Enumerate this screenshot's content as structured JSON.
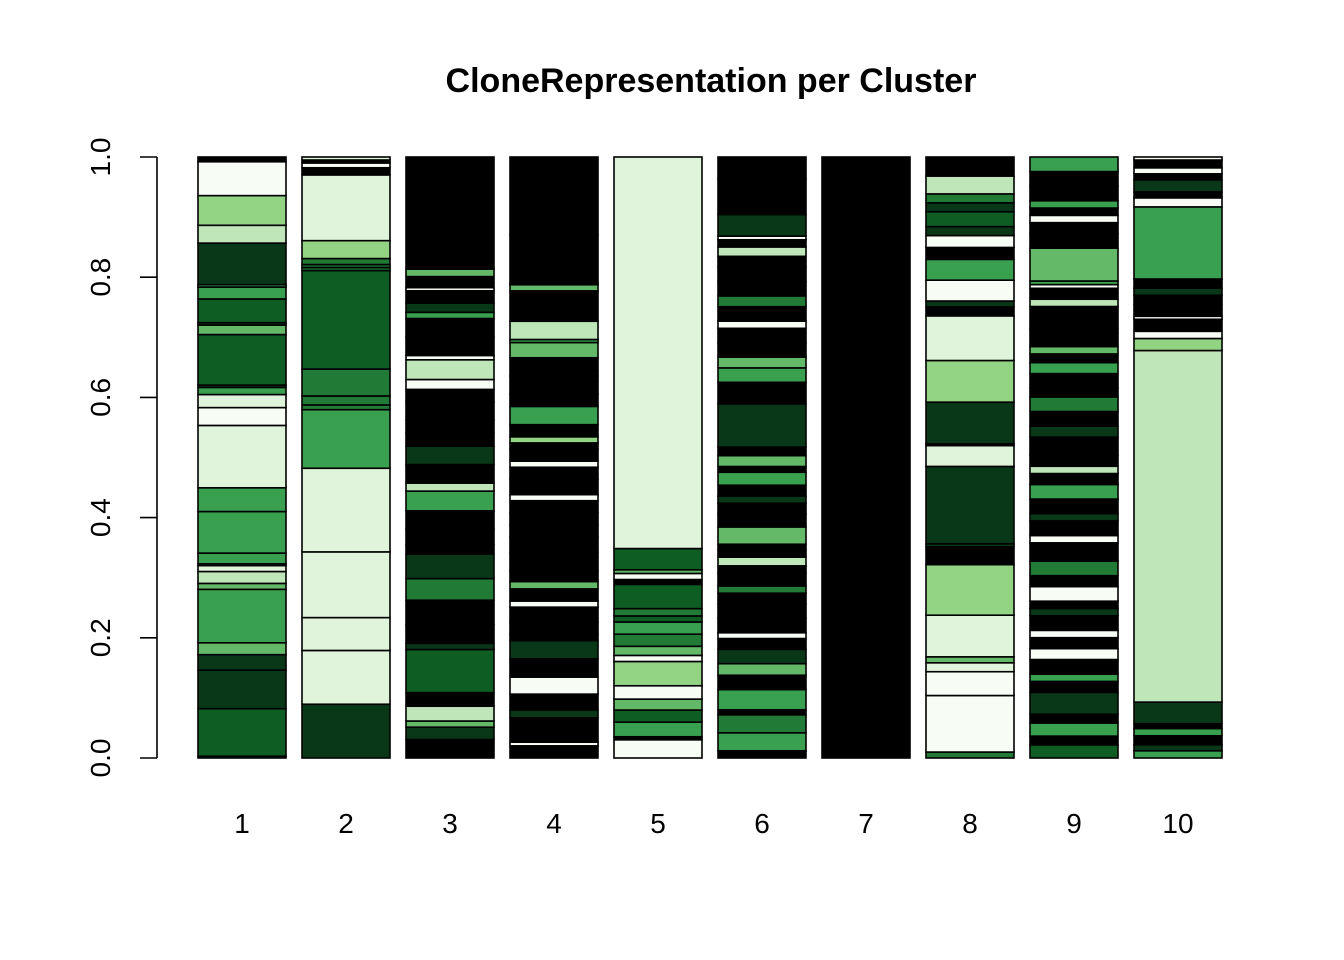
{
  "chart_data": {
    "type": "bar",
    "stacked": true,
    "title": "CloneRepresentation per Cluster",
    "xlabel": "",
    "ylabel": "",
    "ylim": [
      0,
      1
    ],
    "y_ticks": [
      "0.0",
      "0.2",
      "0.4",
      "0.6",
      "0.8",
      "1.0"
    ],
    "y_tick_values": [
      0,
      0.2,
      0.4,
      0.6,
      0.8,
      1.0
    ],
    "grid": false,
    "legend": "none",
    "categories": [
      "1",
      "2",
      "3",
      "4",
      "5",
      "6",
      "7",
      "8",
      "9",
      "10"
    ],
    "palette": [
      "#f7fcf5",
      "#e0f3db",
      "#bfe6b9",
      "#93d384",
      "#63b967",
      "#38a04f",
      "#217a36",
      "#0e5e24",
      "#083818",
      "#000000"
    ],
    "stacks": [
      [
        [
          0.003,
          8
        ],
        [
          0.08,
          7
        ],
        [
          0.065,
          8
        ],
        [
          0.026,
          8
        ],
        [
          0.02,
          4
        ],
        [
          0.09,
          5
        ],
        [
          0.01,
          4
        ],
        [
          0.02,
          2
        ],
        [
          0.01,
          1
        ],
        [
          0.003,
          7
        ],
        [
          0.018,
          5
        ],
        [
          0.07,
          5
        ],
        [
          0.04,
          5
        ],
        [
          0.105,
          1
        ],
        [
          0.03,
          0
        ],
        [
          0.022,
          1
        ],
        [
          0.012,
          5
        ],
        [
          0.004,
          8
        ],
        [
          0.085,
          7
        ],
        [
          0.016,
          4
        ],
        [
          0.004,
          8
        ],
        [
          0.04,
          7
        ],
        [
          0.02,
          5
        ],
        [
          0.004,
          5
        ],
        [
          0.07,
          8
        ],
        [
          0.03,
          2
        ],
        [
          0.05,
          3
        ],
        [
          0.057,
          0
        ],
        [
          0.008,
          9
        ]
      ],
      [
        [
          0.09,
          8
        ],
        [
          0.09,
          1
        ],
        [
          0.055,
          1
        ],
        [
          0.11,
          1
        ],
        [
          0.14,
          1
        ],
        [
          0.098,
          5
        ],
        [
          0.008,
          6
        ],
        [
          0.015,
          6
        ],
        [
          0.045,
          6
        ],
        [
          0.165,
          7
        ],
        [
          0.005,
          6
        ],
        [
          0.005,
          6
        ],
        [
          0.01,
          6
        ],
        [
          0.03,
          3
        ],
        [
          0.11,
          1
        ],
        [
          0.012,
          9
        ],
        [
          0.008,
          0
        ],
        [
          0.005,
          9
        ],
        [
          0.005,
          1
        ]
      ],
      [
        [
          0.03,
          9
        ],
        [
          0.02,
          8
        ],
        [
          0.01,
          4
        ],
        [
          0.024,
          2
        ],
        [
          0.022,
          9
        ],
        [
          0.07,
          7
        ],
        [
          0.01,
          8
        ],
        [
          0.03,
          9
        ],
        [
          0.04,
          9
        ],
        [
          0.035,
          6
        ],
        [
          0.04,
          8
        ],
        [
          0.015,
          9
        ],
        [
          0.025,
          9
        ],
        [
          0.03,
          9
        ],
        [
          0.032,
          5
        ],
        [
          0.013,
          2
        ],
        [
          0.03,
          9
        ],
        [
          0.03,
          8
        ],
        [
          0.022,
          9
        ],
        [
          0.02,
          9
        ],
        [
          0.03,
          9
        ],
        [
          0.02,
          9
        ],
        [
          0.016,
          0
        ],
        [
          0.032,
          2
        ],
        [
          0.007,
          0
        ],
        [
          0.03,
          9
        ],
        [
          0.03,
          9
        ],
        [
          0.01,
          5
        ],
        [
          0.015,
          8
        ],
        [
          0.02,
          9
        ],
        [
          0.005,
          0
        ],
        [
          0.018,
          9
        ],
        [
          0.012,
          4
        ],
        [
          0.182,
          9
        ]
      ],
      [
        [
          0.02,
          9
        ],
        [
          0.006,
          0
        ],
        [
          0.04,
          9
        ],
        [
          0.013,
          8
        ],
        [
          0.026,
          9
        ],
        [
          0.028,
          0
        ],
        [
          0.03,
          9
        ],
        [
          0.03,
          8
        ],
        [
          0.01,
          9
        ],
        [
          0.02,
          9
        ],
        [
          0.025,
          9
        ],
        [
          0.01,
          0
        ],
        [
          0.02,
          9
        ],
        [
          0.012,
          4
        ],
        [
          0.018,
          9
        ],
        [
          0.03,
          9
        ],
        [
          0.025,
          9
        ],
        [
          0.02,
          9
        ],
        [
          0.02,
          9
        ],
        [
          0.02,
          9
        ],
        [
          0.01,
          0
        ],
        [
          0.025,
          9
        ],
        [
          0.02,
          9
        ],
        [
          0.01,
          0
        ],
        [
          0.02,
          9
        ],
        [
          0.01,
          9
        ],
        [
          0.01,
          3
        ],
        [
          0.02,
          9
        ],
        [
          0.03,
          5
        ],
        [
          0.02,
          9
        ],
        [
          0.03,
          9
        ],
        [
          0.03,
          9
        ],
        [
          0.025,
          4
        ],
        [
          0.005,
          5
        ],
        [
          0.03,
          2
        ],
        [
          0.05,
          9
        ],
        [
          0.01,
          4
        ],
        [
          0.002,
          9
        ],
        [
          0.08,
          9
        ],
        [
          0.128,
          9
        ]
      ],
      [
        [
          0.03,
          0
        ],
        [
          0.005,
          9
        ],
        [
          0.024,
          5
        ],
        [
          0.02,
          7
        ],
        [
          0.018,
          4
        ],
        [
          0.022,
          0
        ],
        [
          0.04,
          3
        ],
        [
          0.01,
          0
        ],
        [
          0.015,
          4
        ],
        [
          0.02,
          6
        ],
        [
          0.02,
          5
        ],
        [
          0.01,
          7
        ],
        [
          0.012,
          6
        ],
        [
          0.04,
          7
        ],
        [
          0.008,
          9
        ],
        [
          0.01,
          0
        ],
        [
          0.006,
          4
        ],
        [
          0.035,
          7
        ],
        [
          0.645,
          1
        ]
      ],
      [
        [
          0.01,
          9
        ],
        [
          0.025,
          5
        ],
        [
          0.025,
          6
        ],
        [
          0.007,
          9
        ],
        [
          0.028,
          5
        ],
        [
          0.02,
          9
        ],
        [
          0.016,
          4
        ],
        [
          0.02,
          8
        ],
        [
          0.015,
          9
        ],
        [
          0.008,
          0
        ],
        [
          0.02,
          9
        ],
        [
          0.02,
          9
        ],
        [
          0.015,
          9
        ],
        [
          0.01,
          6
        ],
        [
          0.018,
          9
        ],
        [
          0.01,
          9
        ],
        [
          0.012,
          2
        ],
        [
          0.01,
          9
        ],
        [
          0.008,
          9
        ],
        [
          0.024,
          4
        ],
        [
          0.018,
          9
        ],
        [
          0.015,
          9
        ],
        [
          0.01,
          8
        ],
        [
          0.015,
          9
        ],
        [
          0.018,
          5
        ],
        [
          0.008,
          9
        ],
        [
          0.015,
          4
        ],
        [
          0.012,
          9
        ],
        [
          0.06,
          8
        ],
        [
          0.03,
          9
        ],
        [
          0.02,
          5
        ],
        [
          0.015,
          4
        ],
        [
          0.02,
          9
        ],
        [
          0.02,
          9
        ],
        [
          0.01,
          0
        ],
        [
          0.02,
          9
        ],
        [
          0.015,
          6
        ],
        [
          0.02,
          9
        ],
        [
          0.02,
          9
        ],
        [
          0.015,
          9
        ],
        [
          0.013,
          2
        ],
        [
          0.01,
          9
        ],
        [
          0.005,
          0
        ],
        [
          0.03,
          8
        ],
        [
          0.05,
          9
        ],
        [
          0.03,
          9
        ]
      ],
      [
        [
          1.0,
          9
        ]
      ],
      [
        [
          0.01,
          6
        ],
        [
          0.095,
          0
        ],
        [
          0.04,
          0
        ],
        [
          0.015,
          1
        ],
        [
          0.01,
          4
        ],
        [
          0.07,
          1
        ],
        [
          0.085,
          3
        ],
        [
          0.03,
          9
        ],
        [
          0.005,
          8
        ],
        [
          0.13,
          8
        ],
        [
          0.035,
          1
        ],
        [
          0.003,
          9
        ],
        [
          0.07,
          8
        ],
        [
          0.07,
          3
        ],
        [
          0.075,
          1
        ],
        [
          0.015,
          9
        ],
        [
          0.01,
          8
        ],
        [
          0.035,
          0
        ],
        [
          0.035,
          5
        ],
        [
          0.02,
          9
        ],
        [
          0.02,
          0
        ],
        [
          0.015,
          8
        ],
        [
          0.025,
          7
        ],
        [
          0.015,
          8
        ],
        [
          0.015,
          6
        ],
        [
          0.03,
          2
        ],
        [
          0.032,
          9
        ]
      ],
      [
        [
          0.018,
          7
        ],
        [
          0.012,
          9
        ],
        [
          0.018,
          5
        ],
        [
          0.012,
          9
        ],
        [
          0.03,
          8
        ],
        [
          0.015,
          9
        ],
        [
          0.01,
          5
        ],
        [
          0.02,
          9
        ],
        [
          0.015,
          0
        ],
        [
          0.015,
          9
        ],
        [
          0.01,
          0
        ],
        [
          0.02,
          9
        ],
        [
          0.01,
          8
        ],
        [
          0.01,
          9
        ],
        [
          0.02,
          0
        ],
        [
          0.015,
          9
        ],
        [
          0.02,
          6
        ],
        [
          0.025,
          9
        ],
        [
          0.01,
          0
        ],
        [
          0.02,
          9
        ],
        [
          0.01,
          8
        ],
        [
          0.02,
          9
        ],
        [
          0.02,
          5
        ],
        [
          0.015,
          9
        ],
        [
          0.01,
          2
        ],
        [
          0.015,
          9
        ],
        [
          0.025,
          9
        ],
        [
          0.015,
          8
        ],
        [
          0.02,
          9
        ],
        [
          0.02,
          6
        ],
        [
          0.012,
          9
        ],
        [
          0.02,
          9
        ],
        [
          0.015,
          5
        ],
        [
          0.012,
          9
        ],
        [
          0.01,
          4
        ],
        [
          0.025,
          9
        ],
        [
          0.03,
          9
        ],
        [
          0.01,
          2
        ],
        [
          0.015,
          9
        ],
        [
          0.005,
          0
        ],
        [
          0.005,
          5
        ],
        [
          0.045,
          4
        ],
        [
          0.02,
          9
        ],
        [
          0.015,
          9
        ],
        [
          0.01,
          0
        ],
        [
          0.01,
          9
        ],
        [
          0.01,
          5
        ],
        [
          0.02,
          9
        ],
        [
          0.02,
          9
        ],
        [
          0.02,
          5
        ]
      ],
      [
        [
          0.012,
          5
        ],
        [
          0.01,
          8
        ],
        [
          0.015,
          9
        ],
        [
          0.012,
          5
        ],
        [
          0.008,
          9
        ],
        [
          0.036,
          8
        ],
        [
          0.585,
          2
        ],
        [
          0.02,
          3
        ],
        [
          0.012,
          0
        ],
        [
          0.02,
          9
        ],
        [
          0.005,
          0
        ],
        [
          0.02,
          9
        ],
        [
          0.015,
          9
        ],
        [
          0.012,
          8
        ],
        [
          0.015,
          9
        ],
        [
          0.12,
          5
        ],
        [
          0.015,
          0
        ],
        [
          0.01,
          9
        ],
        [
          0.02,
          8
        ],
        [
          0.01,
          9
        ],
        [
          0.01,
          0
        ],
        [
          0.013,
          9
        ],
        [
          0.005,
          0
        ]
      ]
    ]
  }
}
